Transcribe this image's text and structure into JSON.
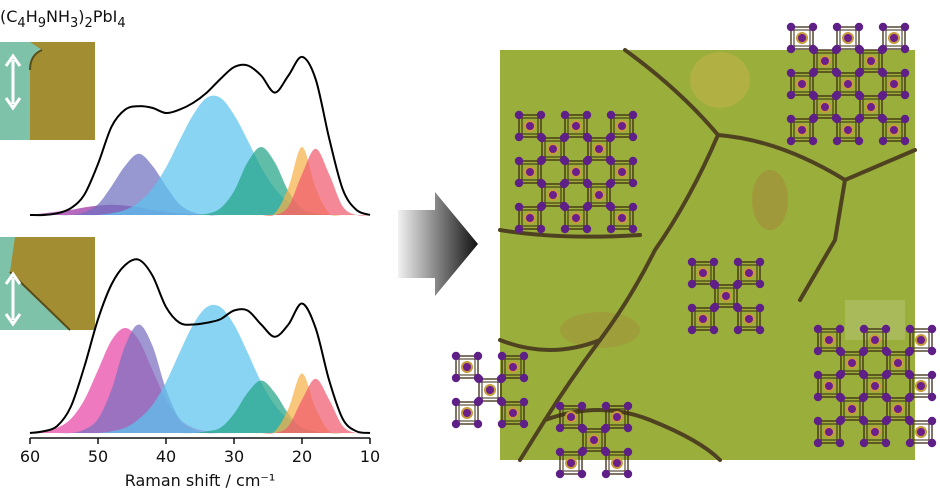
{
  "chart_data": [
    {
      "type": "area",
      "title": "(C4H9NH3)2PbI4",
      "x": [
        60,
        58,
        56,
        54,
        52,
        50,
        48,
        46,
        44,
        42,
        40,
        38,
        36,
        34,
        32,
        30,
        28,
        26,
        24,
        22,
        20,
        18,
        16,
        14,
        12,
        10
      ],
      "xlim": [
        60,
        10
      ],
      "ylim": [
        0,
        1
      ],
      "series": [
        {
          "color": "#000000",
          "kind": "line",
          "values": [
            0,
            0,
            0.01,
            0.04,
            0.12,
            0.3,
            0.52,
            0.62,
            0.64,
            0.63,
            0.6,
            0.62,
            0.66,
            0.72,
            0.8,
            0.87,
            0.88,
            0.82,
            0.72,
            0.82,
            0.93,
            0.8,
            0.45,
            0.15,
            0.03,
            0
          ]
        },
        {
          "color": "#9b2fa3",
          "values": [
            0,
            0.01,
            0.02,
            0.03,
            0.045,
            0.055,
            0.06,
            0.055,
            0.045,
            0.03,
            0.02,
            0.01,
            0.005,
            0,
            0,
            0,
            0,
            0,
            0,
            0,
            0,
            0,
            0,
            0,
            0,
            0
          ]
        },
        {
          "color": "#6f6fbf",
          "values": [
            0,
            0,
            0,
            0,
            0.016,
            0.063,
            0.17,
            0.29,
            0.36,
            0.29,
            0.17,
            0.063,
            0.016,
            0,
            0,
            0,
            0,
            0,
            0,
            0,
            0,
            0,
            0,
            0,
            0,
            0
          ]
        },
        {
          "color": "#5bc3ee",
          "values": [
            0,
            0,
            0,
            0,
            0,
            0,
            0.01,
            0.03,
            0.075,
            0.156,
            0.28,
            0.44,
            0.59,
            0.69,
            0.69,
            0.59,
            0.44,
            0.28,
            0.156,
            0.075,
            0.03,
            0.01,
            0,
            0,
            0,
            0
          ]
        },
        {
          "color": "#22a386",
          "values": [
            0,
            0,
            0,
            0,
            0,
            0,
            0,
            0,
            0,
            0,
            0,
            0,
            0,
            0.007,
            0.04,
            0.14,
            0.31,
            0.4,
            0.31,
            0.14,
            0.04,
            0.007,
            0,
            0,
            0,
            0
          ]
        },
        {
          "color": "#f7b24a",
          "values": [
            0,
            0,
            0,
            0,
            0,
            0,
            0,
            0,
            0,
            0,
            0,
            0,
            0,
            0,
            0,
            0,
            0,
            0,
            0.01,
            0.16,
            0.4,
            0.16,
            0.01,
            0,
            0,
            0
          ]
        },
        {
          "color": "#f05a6e",
          "values": [
            0,
            0,
            0,
            0,
            0,
            0,
            0,
            0,
            0,
            0,
            0,
            0,
            0,
            0,
            0,
            0,
            0,
            0,
            0,
            0.05,
            0.24,
            0.39,
            0.24,
            0.05,
            0,
            0
          ]
        }
      ]
    },
    {
      "type": "area",
      "xlabel": "Raman shift / cm⁻¹",
      "x": [
        60,
        58,
        56,
        54,
        52,
        50,
        48,
        46,
        44,
        42,
        40,
        38,
        36,
        34,
        32,
        30,
        28,
        26,
        24,
        22,
        20,
        18,
        16,
        14,
        12,
        10
      ],
      "xlim": [
        60,
        10
      ],
      "ylim": [
        0,
        1
      ],
      "xticks": [
        60,
        50,
        40,
        30,
        20,
        10
      ],
      "series": [
        {
          "color": "#000000",
          "kind": "line",
          "values": [
            0,
            0.01,
            0.04,
            0.15,
            0.38,
            0.65,
            0.85,
            0.96,
            0.99,
            0.9,
            0.72,
            0.63,
            0.62,
            0.63,
            0.65,
            0.7,
            0.7,
            0.62,
            0.55,
            0.62,
            0.74,
            0.6,
            0.3,
            0.08,
            0.01,
            0
          ]
        },
        {
          "color": "#e845a6",
          "values": [
            0,
            0.01,
            0.03,
            0.08,
            0.19,
            0.36,
            0.53,
            0.6,
            0.53,
            0.36,
            0.19,
            0.08,
            0.03,
            0.01,
            0,
            0,
            0,
            0,
            0,
            0,
            0,
            0,
            0,
            0,
            0,
            0
          ]
        },
        {
          "color": "#7a6fbf",
          "values": [
            0,
            0,
            0,
            0,
            0.02,
            0.08,
            0.25,
            0.5,
            0.62,
            0.5,
            0.25,
            0.08,
            0.02,
            0,
            0,
            0,
            0,
            0,
            0,
            0,
            0,
            0,
            0,
            0,
            0,
            0
          ]
        },
        {
          "color": "#5bc3ee",
          "values": [
            0,
            0,
            0,
            0,
            0,
            0,
            0.01,
            0.03,
            0.08,
            0.16,
            0.29,
            0.46,
            0.62,
            0.72,
            0.72,
            0.62,
            0.46,
            0.29,
            0.16,
            0.08,
            0.03,
            0.01,
            0,
            0,
            0,
            0
          ]
        },
        {
          "color": "#22a386",
          "values": [
            0,
            0,
            0,
            0,
            0,
            0,
            0,
            0,
            0,
            0,
            0,
            0,
            0,
            0.01,
            0.03,
            0.11,
            0.23,
            0.3,
            0.23,
            0.11,
            0.03,
            0.01,
            0,
            0,
            0,
            0
          ]
        },
        {
          "color": "#f7b24a",
          "values": [
            0,
            0,
            0,
            0,
            0,
            0,
            0,
            0,
            0,
            0,
            0,
            0,
            0,
            0,
            0,
            0,
            0,
            0,
            0.01,
            0.14,
            0.34,
            0.14,
            0.01,
            0,
            0,
            0
          ]
        },
        {
          "color": "#f05a6e",
          "values": [
            0,
            0,
            0,
            0,
            0,
            0,
            0,
            0,
            0,
            0,
            0,
            0,
            0,
            0,
            0,
            0,
            0,
            0,
            0,
            0.04,
            0.19,
            0.31,
            0.19,
            0.04,
            0,
            0
          ]
        }
      ]
    }
  ]
}
